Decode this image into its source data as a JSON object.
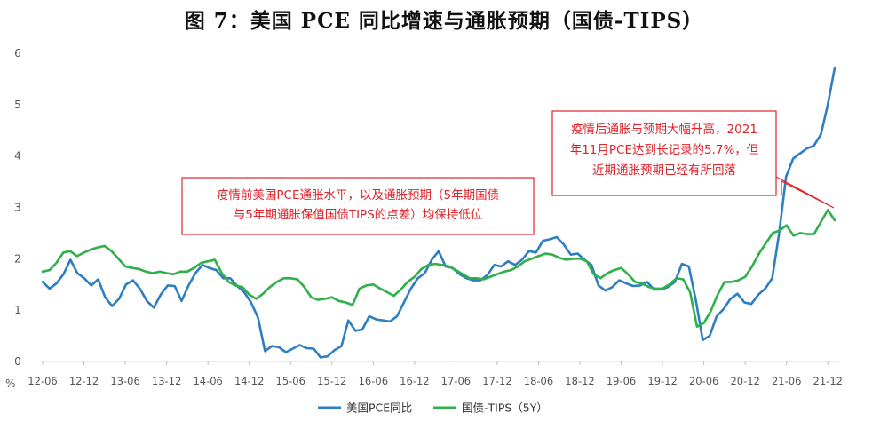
{
  "title": "图 7：美国 PCE 同比增速与通胀预期（国债-TIPS）",
  "chart_data": {
    "type": "line",
    "ylim": [
      0,
      6
    ],
    "yticks": [
      0,
      1,
      2,
      3,
      4,
      5,
      6
    ],
    "y_unit": "%",
    "grid": false,
    "legend_position": "bottom",
    "x_tick_labels": [
      "12-06",
      "12-12",
      "13-06",
      "13-12",
      "14-06",
      "14-12",
      "15-06",
      "15-12",
      "16-06",
      "16-12",
      "17-06",
      "17-12",
      "18-06",
      "18-12",
      "19-06",
      "19-12",
      "20-06",
      "20-12",
      "21-06",
      "21-12"
    ],
    "x_start": "2012-06",
    "x_end": "2022-01",
    "series": [
      {
        "name": "美国PCE同比",
        "color": "#2e7ec2",
        "values": [
          1.55,
          1.42,
          1.52,
          1.7,
          1.98,
          1.72,
          1.62,
          1.48,
          1.6,
          1.25,
          1.08,
          1.22,
          1.5,
          1.58,
          1.42,
          1.18,
          1.05,
          1.3,
          1.48,
          1.47,
          1.18,
          1.48,
          1.72,
          1.88,
          1.82,
          1.78,
          1.62,
          1.62,
          1.47,
          1.35,
          1.15,
          0.85,
          0.2,
          0.3,
          0.28,
          0.18,
          0.25,
          0.32,
          0.26,
          0.25,
          0.08,
          0.1,
          0.22,
          0.3,
          0.8,
          0.6,
          0.62,
          0.88,
          0.82,
          0.8,
          0.78,
          0.88,
          1.15,
          1.42,
          1.62,
          1.72,
          1.98,
          2.15,
          1.85,
          1.82,
          1.7,
          1.62,
          1.58,
          1.58,
          1.68,
          1.88,
          1.85,
          1.95,
          1.88,
          1.98,
          2.15,
          2.12,
          2.35,
          2.38,
          2.42,
          2.28,
          2.08,
          2.1,
          1.98,
          1.88,
          1.48,
          1.38,
          1.45,
          1.58,
          1.52,
          1.47,
          1.48,
          1.55,
          1.4,
          1.4,
          1.45,
          1.55,
          1.9,
          1.85,
          1.2,
          0.42,
          0.5,
          0.88,
          1.02,
          1.22,
          1.32,
          1.15,
          1.12,
          1.3,
          1.42,
          1.62,
          2.5,
          3.6,
          3.95,
          4.05,
          4.15,
          4.2,
          4.42,
          5.0,
          5.72
        ]
      },
      {
        "name": "国债-TIPS（5Y）",
        "color": "#2fb04a",
        "values": [
          1.75,
          1.78,
          1.92,
          2.12,
          2.15,
          2.05,
          2.12,
          2.18,
          2.22,
          2.25,
          2.15,
          2.0,
          1.85,
          1.82,
          1.8,
          1.75,
          1.72,
          1.75,
          1.72,
          1.7,
          1.75,
          1.75,
          1.82,
          1.92,
          1.95,
          1.98,
          1.72,
          1.55,
          1.48,
          1.45,
          1.3,
          1.22,
          1.32,
          1.45,
          1.55,
          1.62,
          1.62,
          1.6,
          1.45,
          1.25,
          1.2,
          1.22,
          1.25,
          1.18,
          1.15,
          1.1,
          1.42,
          1.48,
          1.5,
          1.42,
          1.35,
          1.28,
          1.4,
          1.55,
          1.65,
          1.8,
          1.88,
          1.9,
          1.88,
          1.85,
          1.78,
          1.7,
          1.62,
          1.62,
          1.6,
          1.65,
          1.7,
          1.75,
          1.78,
          1.85,
          1.95,
          2.0,
          2.05,
          2.1,
          2.08,
          2.02,
          1.98,
          2.0,
          2.0,
          1.95,
          1.7,
          1.62,
          1.72,
          1.78,
          1.82,
          1.7,
          1.55,
          1.52,
          1.45,
          1.42,
          1.42,
          1.5,
          1.62,
          1.6,
          1.35,
          0.68,
          0.75,
          0.98,
          1.3,
          1.55,
          1.55,
          1.58,
          1.65,
          1.85,
          2.1,
          2.3,
          2.5,
          2.55,
          2.65,
          2.45,
          2.5,
          2.48,
          2.48,
          2.72,
          2.95,
          2.75
        ]
      }
    ],
    "annotations": [
      {
        "lines": [
          "疫情前美国PCE通胀水平，以及通胀预期（5年期国债",
          "与5年期通胀保值国债TIPS的点差）均保持低位"
        ],
        "color": "#e0222a"
      },
      {
        "lines": [
          "疫情后通胀与预期大幅升高，2021",
          "年11月PCE达到长记录的5.7%，但",
          "近期通胀预期已经有所回落"
        ],
        "color": "#e0222a"
      }
    ]
  }
}
